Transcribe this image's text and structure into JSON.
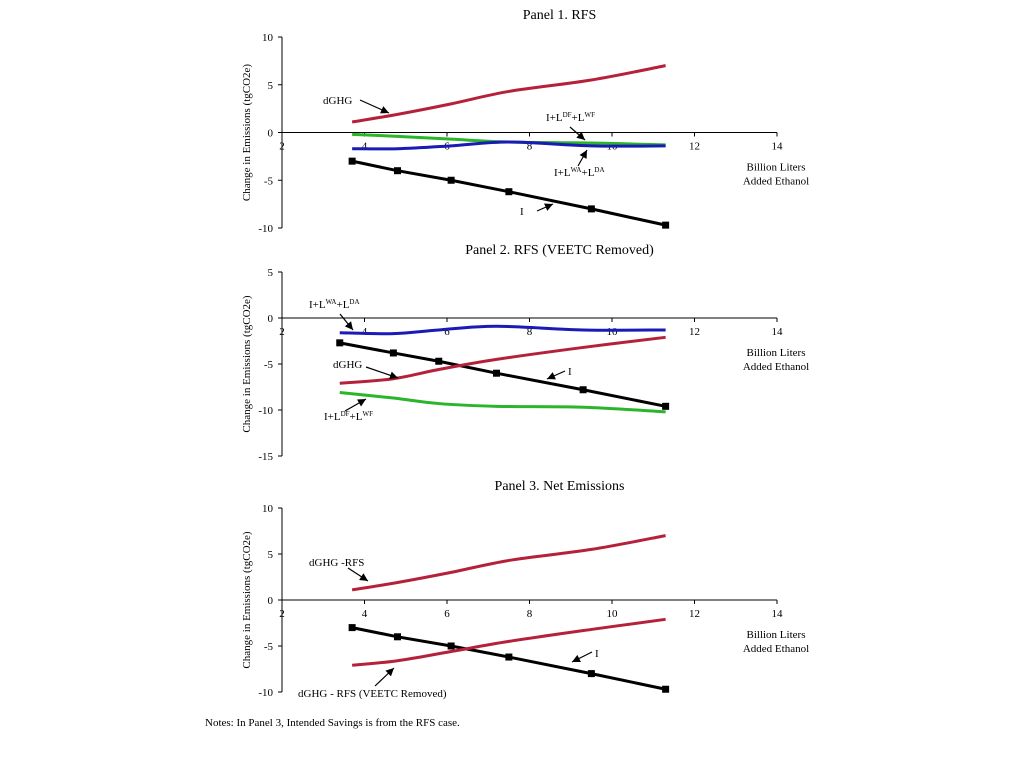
{
  "chart_data": [
    {
      "type": "line",
      "title": "Panel 1. RFS",
      "ylabel": "Change in Emissions (tgCO2e)",
      "xlabel": [
        "Billion Liters",
        "Added Ethanol"
      ],
      "xlim": [
        2,
        14
      ],
      "ylim": [
        -10,
        10
      ],
      "xticks": [
        2,
        4,
        6,
        8,
        10,
        12,
        14
      ],
      "yticks": [
        -10,
        -5,
        0,
        5,
        10
      ],
      "grid": false,
      "legend": "none",
      "series": [
        {
          "name": "dGHG",
          "color": "#b5213a",
          "markers": false,
          "x": [
            3.7,
            4.8,
            6.1,
            7.5,
            9.5,
            11.3
          ],
          "y": [
            1.1,
            1.9,
            3.0,
            4.3,
            5.5,
            7.0
          ]
        },
        {
          "name": "I+L^DF+L^WF",
          "color": "#2ab52a",
          "markers": false,
          "x": [
            3.7,
            4.8,
            6.1,
            7.5,
            9.5,
            11.3
          ],
          "y": [
            -0.2,
            -0.4,
            -0.7,
            -1.0,
            -1.1,
            -1.3
          ]
        },
        {
          "name": "I+L^WA+L^DA",
          "color": "#1a1ab5",
          "markers": false,
          "x": [
            3.7,
            4.8,
            6.1,
            7.5,
            9.5,
            11.3
          ],
          "y": [
            -1.7,
            -1.7,
            -1.4,
            -1.0,
            -1.4,
            -1.4
          ]
        },
        {
          "name": "I",
          "color": "#000000",
          "markers": true,
          "x": [
            3.7,
            4.8,
            6.1,
            7.5,
            9.5,
            11.3
          ],
          "y": [
            -3.0,
            -4.0,
            -5.0,
            -6.2,
            -8.0,
            -9.7
          ]
        }
      ],
      "annotations": [
        {
          "text": "dGHG"
        },
        {
          "text": "I+L",
          "sup1": "DF",
          "mid": "+L",
          "sup2": "WF"
        },
        {
          "text": "I+L",
          "sup1": "WA",
          "mid": "+L",
          "sup2": "DA"
        },
        {
          "text": "I"
        }
      ]
    },
    {
      "type": "line",
      "title": "Panel 2. RFS (VEETC Removed)",
      "ylabel": "Change in Emissions (tgCO2e)",
      "xlabel": [
        "Billion Liters",
        "Added Ethanol"
      ],
      "xlim": [
        2,
        14
      ],
      "ylim": [
        -15,
        5
      ],
      "xticks": [
        2,
        4,
        6,
        8,
        10,
        12,
        14
      ],
      "yticks": [
        -15,
        -10,
        -5,
        0,
        5
      ],
      "grid": false,
      "legend": "none",
      "series": [
        {
          "name": "I+L^WA+L^DA",
          "color": "#1a1ab5",
          "markers": false,
          "x": [
            3.4,
            4.7,
            5.8,
            7.2,
            9.3,
            11.3
          ],
          "y": [
            -1.6,
            -1.7,
            -1.3,
            -0.9,
            -1.3,
            -1.3
          ]
        },
        {
          "name": "I",
          "color": "#000000",
          "markers": true,
          "x": [
            3.4,
            4.7,
            5.8,
            7.2,
            9.3,
            11.3
          ],
          "y": [
            -2.7,
            -3.8,
            -4.7,
            -6.0,
            -7.8,
            -9.6
          ]
        },
        {
          "name": "dGHG",
          "color": "#b5213a",
          "markers": false,
          "x": [
            3.4,
            4.7,
            5.8,
            7.2,
            9.3,
            11.3
          ],
          "y": [
            -7.1,
            -6.6,
            -5.6,
            -4.5,
            -3.2,
            -2.1
          ]
        },
        {
          "name": "I+L^DF+L^WF",
          "color": "#2ab52a",
          "markers": false,
          "x": [
            3.4,
            4.7,
            5.8,
            7.2,
            9.3,
            11.3
          ],
          "y": [
            -8.1,
            -8.7,
            -9.3,
            -9.6,
            -9.7,
            -10.2
          ]
        }
      ],
      "annotations": [
        {
          "text": "I+L",
          "sup1": "WA",
          "mid": "+L",
          "sup2": "DA"
        },
        {
          "text": "dGHG"
        },
        {
          "text": "I"
        },
        {
          "text": "I+L",
          "sup1": "DF",
          "mid": "+L",
          "sup2": "WF"
        }
      ]
    },
    {
      "type": "line",
      "title": "Panel 3. Net Emissions",
      "ylabel": "Change in Emissions (tgCO2e)",
      "xlabel": [
        "Billion Liters",
        "Added Ethanol"
      ],
      "xlim": [
        2,
        14
      ],
      "ylim": [
        -10,
        10
      ],
      "xticks": [
        2,
        4,
        6,
        8,
        10,
        12,
        14
      ],
      "yticks": [
        -10,
        -5,
        0,
        5,
        10
      ],
      "grid": false,
      "legend": "none",
      "series": [
        {
          "name": "dGHG -RFS",
          "color": "#b5213a",
          "markers": false,
          "x": [
            3.7,
            4.8,
            6.1,
            7.5,
            9.5,
            11.3
          ],
          "y": [
            1.1,
            1.9,
            3.0,
            4.3,
            5.5,
            7.0
          ]
        },
        {
          "name": "I",
          "color": "#000000",
          "markers": true,
          "x": [
            3.7,
            4.8,
            6.1,
            7.5,
            9.5,
            11.3
          ],
          "y": [
            -3.0,
            -4.0,
            -5.0,
            -6.2,
            -8.0,
            -9.7
          ]
        },
        {
          "name": "dGHG - RFS (VEETC Removed)",
          "color": "#b5213a",
          "markers": false,
          "x": [
            3.7,
            4.8,
            6.1,
            7.5,
            9.5,
            11.3
          ],
          "y": [
            -7.1,
            -6.6,
            -5.6,
            -4.5,
            -3.2,
            -2.1
          ]
        }
      ],
      "annotations": [
        {
          "text": "dGHG -RFS"
        },
        {
          "text": "I"
        },
        {
          "text": "dGHG - RFS (VEETC Removed)"
        }
      ]
    }
  ],
  "note": "Notes: In Panel 3, Intended Savings is from the RFS case."
}
